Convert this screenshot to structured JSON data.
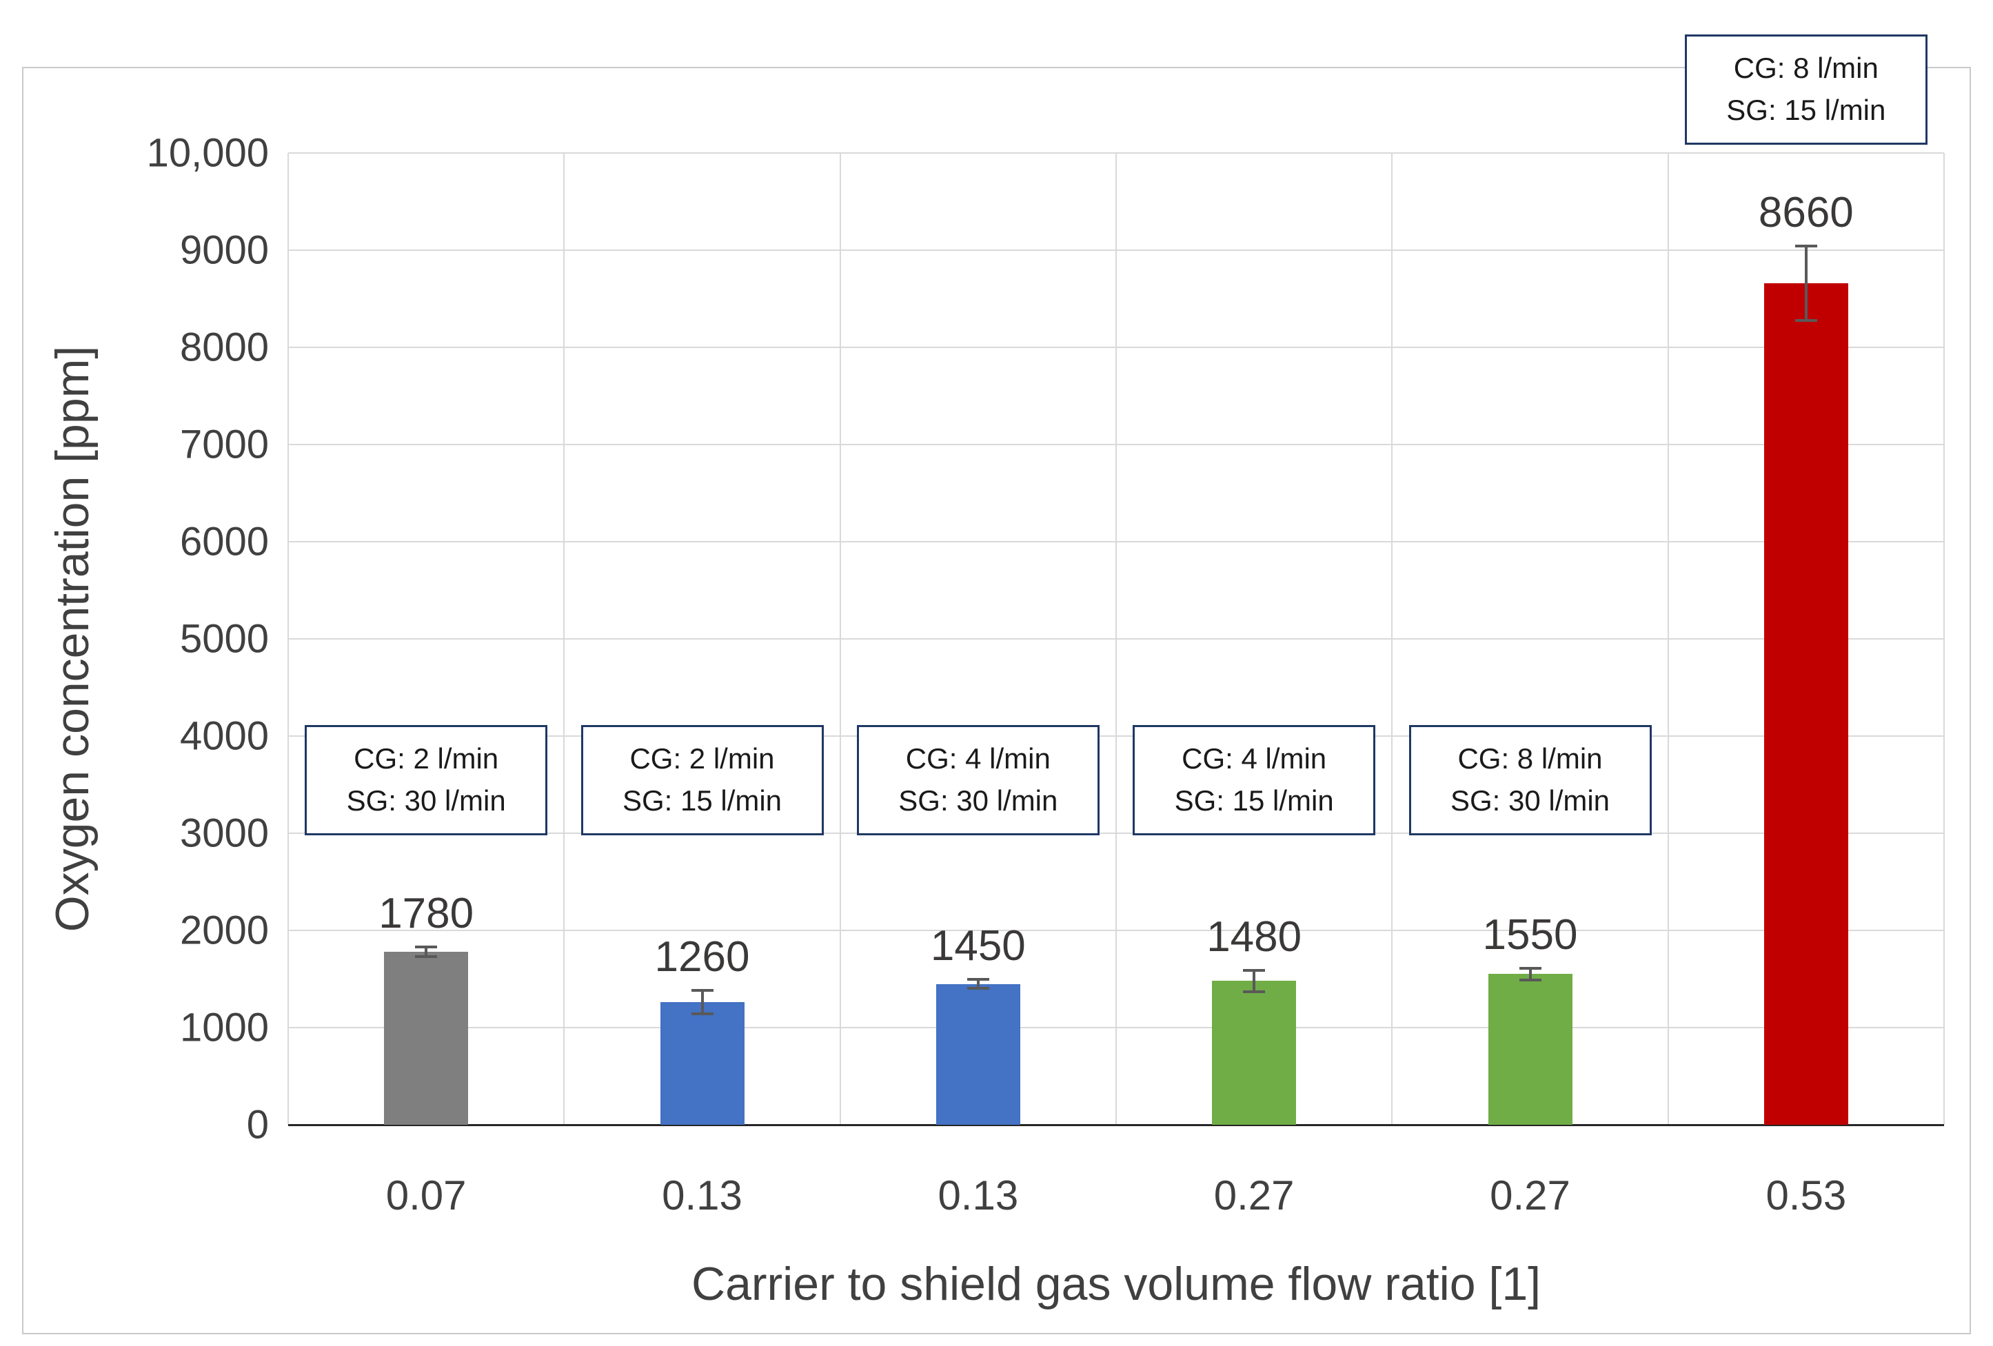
{
  "chart_data": {
    "type": "bar",
    "title": "",
    "xlabel": "Carrier to shield gas volume flow ratio [1]",
    "ylabel": "Oxygen concentration [ppm]",
    "ylim": [
      0,
      10000
    ],
    "grid": true,
    "legend": "none",
    "y_ticks": [
      {
        "value": 0,
        "label": "0"
      },
      {
        "value": 1000,
        "label": "1000"
      },
      {
        "value": 2000,
        "label": "2000"
      },
      {
        "value": 3000,
        "label": "3000"
      },
      {
        "value": 4000,
        "label": "4000"
      },
      {
        "value": 5000,
        "label": "5000"
      },
      {
        "value": 6000,
        "label": "6000"
      },
      {
        "value": 7000,
        "label": "7000"
      },
      {
        "value": 8000,
        "label": "8000"
      },
      {
        "value": 9000,
        "label": "9000"
      },
      {
        "value": 10000,
        "label": "10,000"
      }
    ],
    "categories": [
      "0.07",
      "0.13",
      "0.13",
      "0.27",
      "0.27",
      "0.53"
    ],
    "values": [
      1780,
      1260,
      1450,
      1480,
      1550,
      8660
    ],
    "data_labels": [
      "1780",
      "1260",
      "1450",
      "1480",
      "1550",
      "8660"
    ],
    "error_bars": [
      50,
      120,
      45,
      110,
      60,
      380
    ],
    "bar_colors": [
      "#7f7f7f",
      "#4472c4",
      "#4472c4",
      "#70ad47",
      "#70ad47",
      "#c00000"
    ],
    "annotations": [
      {
        "bar_index": 0,
        "placement": "mid",
        "lines": [
          "CG: 2 l/min",
          "SG: 30 l/min"
        ]
      },
      {
        "bar_index": 1,
        "placement": "mid",
        "lines": [
          "CG: 2 l/min",
          "SG: 15 l/min"
        ]
      },
      {
        "bar_index": 2,
        "placement": "mid",
        "lines": [
          "CG: 4 l/min",
          "SG: 30 l/min"
        ]
      },
      {
        "bar_index": 3,
        "placement": "mid",
        "lines": [
          "CG: 4 l/min",
          "SG: 15 l/min"
        ]
      },
      {
        "bar_index": 4,
        "placement": "mid",
        "lines": [
          "CG: 8 l/min",
          "SG: 30 l/min"
        ]
      },
      {
        "bar_index": 5,
        "placement": "above-top",
        "lines": [
          "CG: 8 l/min",
          "SG: 15 l/min"
        ]
      }
    ],
    "colors": {
      "gridline": "#d9d9d9",
      "axis_line": "#262626",
      "annotation_border": "#1f3864",
      "tick_text": "#404040",
      "error_bar": "#595959",
      "figure_border": "#c9c9c9"
    }
  }
}
